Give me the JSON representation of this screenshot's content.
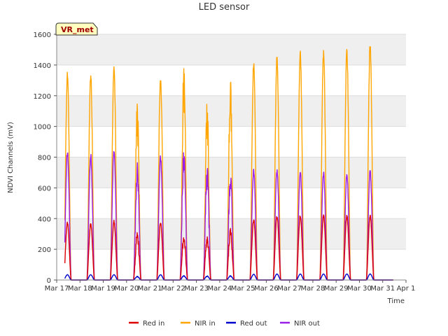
{
  "chart_data": {
    "type": "line",
    "title": "LED sensor",
    "xlabel": "Time",
    "ylabel": "NDVI Channels (mV)",
    "badge": "VR_met",
    "ylim": [
      0,
      1600
    ],
    "yticks": [
      0,
      200,
      400,
      600,
      800,
      1000,
      1200,
      1400,
      1600
    ],
    "xlim_days": [
      17,
      32
    ],
    "xticks": [
      {
        "day": 17,
        "label": "Mar 17"
      },
      {
        "day": 18,
        "label": "Mar 18"
      },
      {
        "day": 19,
        "label": "Mar 19"
      },
      {
        "day": 20,
        "label": "Mar 20"
      },
      {
        "day": 21,
        "label": "Mar 21"
      },
      {
        "day": 22,
        "label": "Mar 22"
      },
      {
        "day": 23,
        "label": "Mar 23"
      },
      {
        "day": 24,
        "label": "Mar 24"
      },
      {
        "day": 25,
        "label": "Mar 25"
      },
      {
        "day": 26,
        "label": "Mar 26"
      },
      {
        "day": 27,
        "label": "Mar 27"
      },
      {
        "day": 28,
        "label": "Mar 28"
      },
      {
        "day": 29,
        "label": "Mar 29"
      },
      {
        "day": 30,
        "label": "Mar 30"
      },
      {
        "day": 31,
        "label": "Mar 31"
      },
      {
        "day": 32,
        "label": "Apr 1"
      }
    ],
    "series_start_day": 17.35,
    "series_end_day": 31.45,
    "days": [
      17,
      18,
      19,
      20,
      21,
      22,
      23,
      24,
      25,
      26,
      27,
      28,
      29,
      30,
      31
    ],
    "series": [
      {
        "name": "Red in",
        "color": "#dd0000",
        "daily_peaks": [
          380,
          375,
          390,
          310,
          380,
          300,
          290,
          350,
          400,
          425,
          430,
          425,
          425,
          430
        ]
      },
      {
        "name": "NIR in",
        "color": "#ffa500",
        "daily_peaks": [
          1360,
          1365,
          1410,
          1175,
          1350,
          1405,
          1165,
          1310,
          1430,
          1475,
          1495,
          1505,
          1520,
          1565
        ]
      },
      {
        "name": "Red out",
        "color": "#0000cc",
        "daily_peaks": [
          35,
          35,
          35,
          25,
          35,
          30,
          28,
          30,
          38,
          40,
          40,
          40,
          40,
          40
        ]
      },
      {
        "name": "NIR out",
        "color": "#9a1fe6",
        "daily_peaks": [
          855,
          830,
          865,
          775,
          815,
          885,
          750,
          740,
          730,
          730,
          720,
          710,
          700,
          725
        ]
      }
    ],
    "legend_position": "bottom",
    "grid": true
  }
}
